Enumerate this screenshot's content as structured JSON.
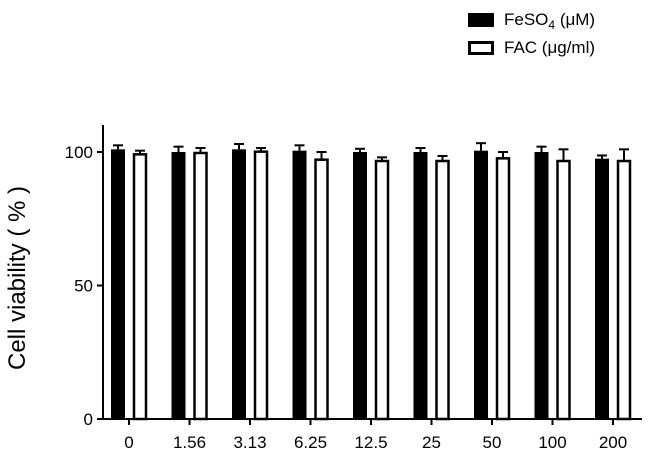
{
  "legend": {
    "fe_prefix": "FeSO",
    "fe_sub": "4",
    "fe_suffix": " (μM)",
    "fac_label": "FAC (μg/ml)"
  },
  "chart_data": {
    "type": "bar",
    "categories": [
      "0",
      "1.56",
      "3.13",
      "6.25",
      "12.5",
      "25",
      "50",
      "100",
      "200"
    ],
    "series": [
      {
        "name": "FeSO4 (μM)",
        "values": [
          101,
          100,
          101,
          100.5,
          100,
          100,
          100.5,
          100,
          97.5
        ],
        "errors": [
          1.5,
          2,
          2,
          2,
          1.2,
          1.5,
          2.8,
          2,
          1.2
        ],
        "fill": "#000000"
      },
      {
        "name": "FAC (μg/ml)",
        "values": [
          99.5,
          100,
          100.5,
          97.5,
          97,
          97,
          98,
          97,
          97
        ],
        "errors": [
          1,
          1.5,
          1,
          2.5,
          1,
          1.5,
          2,
          4,
          4
        ],
        "fill": "#ffffff"
      }
    ],
    "ylabel": "Cell viability ( % )",
    "ylim": [
      0,
      110
    ],
    "yticks": [
      0,
      50,
      100
    ],
    "grid": false,
    "legend_position": "top-right"
  }
}
